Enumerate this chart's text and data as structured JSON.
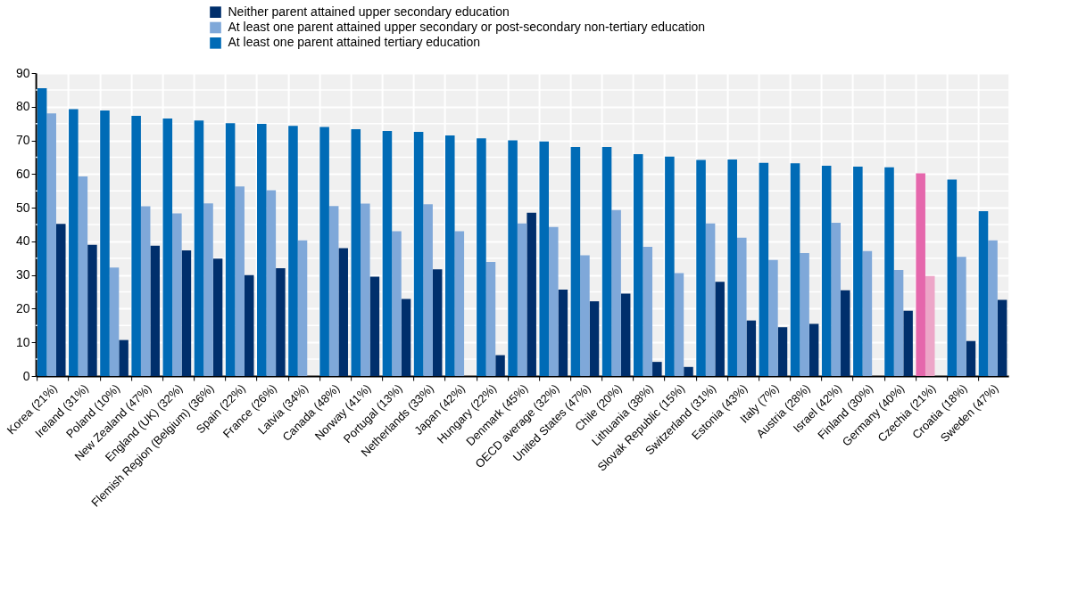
{
  "chart_data": {
    "type": "bar",
    "categories": [
      "Korea (21%)",
      "Ireland (31%)",
      "Poland (10%)",
      "New Zealand (47%)",
      "England (UK) (32%)",
      "Flemish Region (Belgium) (36%)",
      "Spain (22%)",
      "France (26%)",
      "Latvia (34%)",
      "Canada (48%)",
      "Norway (41%)",
      "Portugal (13%)",
      "Netherlands (33%)",
      "Japan (42%)",
      "Hungary (22%)",
      "Denmark (45%)",
      "OECD average (32%)",
      "United States (47%)",
      "Chile (20%)",
      "Lithuania (38%)",
      "Slovak Republic (15%)",
      "Switzerland (31%)",
      "Estonia (43%)",
      "Italy (7%)",
      "Austria (28%)",
      "Israel (42%)",
      "Finland (30%)",
      "Germany (40%)",
      "Czechia (21%)",
      "Croatia (18%)",
      "Sweden (47%)"
    ],
    "series": [
      {
        "name": "Neither parent attained upper secondary education",
        "color": "#002f6c",
        "values": [
          45.2,
          39.0,
          10.7,
          38.7,
          37.3,
          34.9,
          30.0,
          32.0,
          null,
          38.0,
          29.5,
          22.9,
          31.7,
          null,
          6.2,
          48.5,
          25.7,
          22.2,
          24.5,
          4.2,
          2.7,
          28.0,
          16.5,
          14.5,
          15.5,
          25.5,
          null,
          19.4,
          null,
          10.4,
          22.6
        ]
      },
      {
        "name": "At least one parent attained upper secondary or post-secondary non-tertiary education",
        "color": "#7fa8d9",
        "colors": [
          "#7fa8d9",
          "#7fa8d9",
          "#7fa8d9",
          "#7fa8d9",
          "#7fa8d9",
          "#7fa8d9",
          "#7fa8d9",
          "#7fa8d9",
          "#7fa8d9",
          "#7fa8d9",
          "#7fa8d9",
          "#7fa8d9",
          "#7fa8d9",
          "#7fa8d9",
          "#7fa8d9",
          "#7fa8d9",
          "#7fa8d9",
          "#7fa8d9",
          "#7fa8d9",
          "#7fa8d9",
          "#7fa8d9",
          "#7fa8d9",
          "#7fa8d9",
          "#7fa8d9",
          "#7fa8d9",
          "#7fa8d9",
          "#7fa8d9",
          "#7fa8d9",
          "#eda6c8",
          "#7fa8d9",
          "#7fa8d9"
        ],
        "values": [
          78.0,
          59.3,
          32.2,
          50.4,
          48.3,
          51.3,
          56.3,
          55.2,
          40.3,
          50.5,
          51.2,
          43.0,
          51.0,
          43.0,
          33.9,
          45.3,
          44.3,
          35.9,
          49.3,
          38.4,
          30.6,
          45.3,
          41.1,
          34.5,
          36.5,
          45.5,
          37.1,
          31.5,
          29.7,
          35.4,
          40.3
        ]
      },
      {
        "name": "At least one parent attained tertiary education",
        "color": "#006bb6",
        "colors": [
          "#006bb6",
          "#006bb6",
          "#006bb6",
          "#006bb6",
          "#006bb6",
          "#006bb6",
          "#006bb6",
          "#006bb6",
          "#006bb6",
          "#006bb6",
          "#006bb6",
          "#006bb6",
          "#006bb6",
          "#006bb6",
          "#006bb6",
          "#006bb6",
          "#006bb6",
          "#006bb6",
          "#006bb6",
          "#006bb6",
          "#006bb6",
          "#006bb6",
          "#006bb6",
          "#006bb6",
          "#006bb6",
          "#006bb6",
          "#006bb6",
          "#006bb6",
          "#e567ac",
          "#006bb6",
          "#006bb6"
        ],
        "values": [
          85.5,
          79.3,
          78.9,
          77.3,
          76.5,
          75.9,
          75.1,
          74.9,
          74.3,
          74.0,
          73.3,
          72.8,
          72.5,
          71.5,
          70.6,
          70.0,
          69.7,
          68.0,
          68.0,
          65.9,
          65.2,
          64.2,
          64.3,
          63.3,
          63.2,
          62.5,
          62.2,
          62.0,
          60.2,
          58.4,
          49.0
        ]
      }
    ],
    "ylim": [
      0,
      90
    ],
    "yticks": [
      0,
      10,
      20,
      30,
      40,
      50,
      60,
      70,
      80,
      90
    ],
    "grid": true,
    "legend": "top"
  }
}
